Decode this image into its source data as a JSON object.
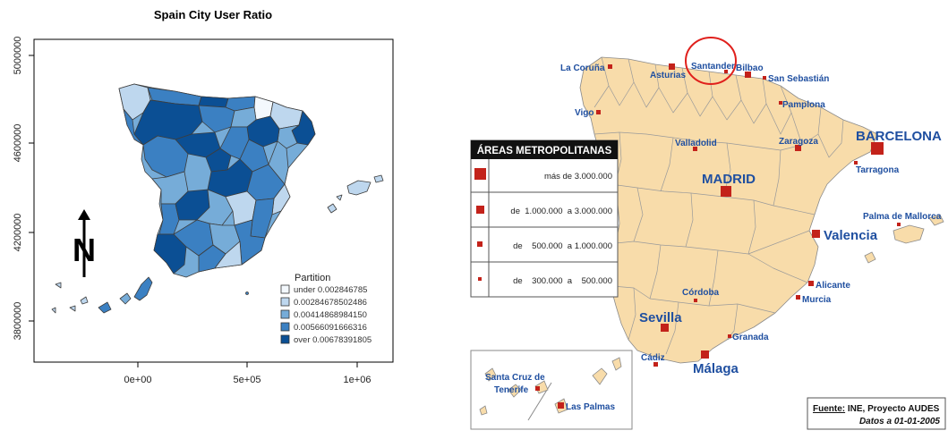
{
  "left_map": {
    "title": "Spain City User Ratio",
    "y_ticks": [
      "3800000",
      "4200000",
      "4600000",
      "5000000"
    ],
    "x_ticks": [
      "0e+00",
      "5e+05",
      "1e+06"
    ],
    "north_label": "N",
    "legend": {
      "title": "Partition",
      "entries": [
        {
          "label": "under 0.002846785",
          "color": "#f3f8fd"
        },
        {
          "label": "0.00284678502486",
          "color": "#bed7ee"
        },
        {
          "label": "0.00414868984150",
          "color": "#76acd8"
        },
        {
          "label": "0.00566091666316",
          "color": "#3b80c2"
        },
        {
          "label": "over 0.00678391805",
          "color": "#0b4f94"
        }
      ]
    }
  },
  "right_map": {
    "table": {
      "title": "ÁREAS METROPOLITANAS",
      "rows": [
        {
          "text": "más de 3.000.000"
        },
        {
          "text": "de  1.000.000  a 3.000.000"
        },
        {
          "text": "de    500.000  a 1.000.000"
        },
        {
          "text": "de    300.000  a    500.000"
        }
      ]
    },
    "cities": {
      "la_coruna": "La Coruña",
      "asturias": "Asturias",
      "santander": "Santander",
      "bilbao": "Bilbao",
      "san_sebastian": "San Sebastián",
      "vigo": "Vigo",
      "pamplona": "Pamplona",
      "valladolid": "Valladolid",
      "zaragoza": "Zaragoza",
      "barcelona": "BARCELONA",
      "tarragona": "Tarragona",
      "madrid": "MADRID",
      "palma": "Palma de Mallorca",
      "valencia": "Valencia",
      "alicante": "Alicante",
      "murcia": "Murcia",
      "cordoba": "Córdoba",
      "sevilla": "Sevilla",
      "granada": "Granada",
      "cadiz": "Cádiz",
      "malaga": "Málaga",
      "santa_cruz_line1": "Santa Cruz de",
      "santa_cruz_line2": "Tenerife",
      "las_palmas": "Las Palmas"
    },
    "source": {
      "label": "Fuente:",
      "text": " INE, Proyecto AUDES",
      "date": "Datos a 01-01-2005"
    }
  },
  "colors": {
    "land": "#f8dcaa",
    "border": "#7a7a7a",
    "marker": "#c3221a",
    "label_blue": "#1f4fa0",
    "highlight_circle": "#e0201c"
  }
}
